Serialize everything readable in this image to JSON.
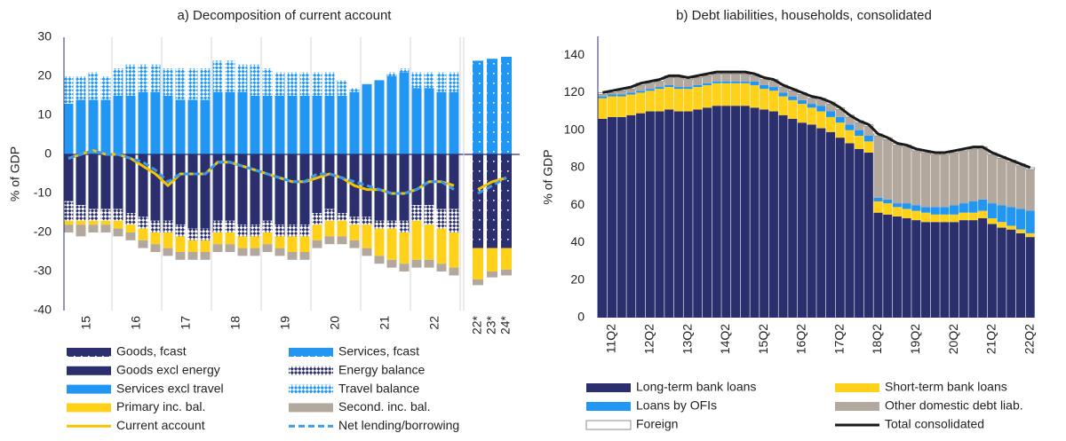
{
  "chart_data": [
    {
      "type": "bar",
      "stacked": true,
      "title": "a) Decomposition of current account",
      "ylabel": "% of GDP",
      "categories": [
        null,
        null,
        null,
        null,
        null,
        null,
        null,
        null,
        null,
        null,
        null,
        null,
        null,
        null,
        null,
        null,
        null,
        null,
        null,
        null,
        null,
        null,
        null,
        null,
        null,
        null,
        null,
        null,
        null,
        null,
        null,
        null,
        "22*",
        "23*",
        "24*"
      ],
      "year_labels": [
        "15",
        "16",
        "17",
        "18",
        "19",
        "20",
        "21",
        "22"
      ],
      "ylim": [
        -40,
        30
      ],
      "yticks": [
        -40,
        -30,
        -20,
        -10,
        0,
        10,
        20,
        30
      ],
      "grid": false,
      "series": [
        {
          "name": "Goods, fcast",
          "color": "#2b2f6e",
          "pattern": "dots",
          "values": [
            null,
            null,
            null,
            null,
            null,
            null,
            null,
            null,
            null,
            null,
            null,
            null,
            null,
            null,
            null,
            null,
            null,
            null,
            null,
            null,
            null,
            null,
            null,
            null,
            null,
            null,
            null,
            null,
            null,
            null,
            null,
            null,
            -24,
            -24,
            -24
          ]
        },
        {
          "name": "Services, fcast",
          "color": "#2196f3",
          "pattern": "dots",
          "values": [
            null,
            null,
            null,
            null,
            null,
            null,
            null,
            null,
            null,
            null,
            null,
            null,
            null,
            null,
            null,
            null,
            null,
            null,
            null,
            null,
            null,
            null,
            null,
            null,
            null,
            null,
            null,
            null,
            null,
            null,
            null,
            null,
            24,
            24.5,
            25
          ]
        },
        {
          "name": "Goods excl energy",
          "color": "#2b2f6e",
          "values": [
            -12,
            -13,
            -14,
            -14,
            -14,
            -15,
            -16,
            -17,
            -17,
            -18,
            -19,
            -19,
            -17,
            -17,
            -18,
            -18,
            -17,
            -18,
            -18,
            -18,
            -15,
            -14,
            -15,
            -16,
            -16,
            -17,
            -17,
            -17,
            -13,
            -13,
            -14,
            -14,
            null,
            null,
            null
          ]
        },
        {
          "name": "Energy balance",
          "color": "#2b2f6e",
          "pattern": "hatch",
          "values": [
            -5,
            -4,
            -3,
            -3,
            -3,
            -3,
            -3,
            -3,
            -3,
            -3,
            -3,
            -3,
            -3,
            -3,
            -3,
            -3,
            -3,
            -3,
            -3,
            -3,
            -3,
            -3,
            -2,
            -2,
            -2,
            -2,
            -2,
            -3,
            -4,
            -5,
            -5,
            -6,
            null,
            null,
            null
          ]
        },
        {
          "name": "Services excl travel",
          "color": "#2196f3",
          "values": [
            13,
            14,
            14,
            14,
            15,
            15,
            16,
            16,
            15,
            14,
            14,
            14,
            16,
            16,
            16,
            15,
            15,
            15,
            15,
            15,
            15,
            15,
            15,
            16,
            18,
            19,
            20,
            21,
            17,
            17,
            16,
            16,
            null,
            null,
            null
          ]
        },
        {
          "name": "Travel balance",
          "color": "#2196f3",
          "pattern": "hatch",
          "values": [
            7,
            6,
            7,
            6,
            7,
            8,
            7,
            7,
            7,
            8,
            8,
            8,
            8,
            8,
            7,
            8,
            7,
            6,
            6,
            6,
            6,
            6,
            4,
            1,
            0,
            0,
            1,
            1,
            4,
            4,
            5,
            5,
            null,
            null,
            null
          ]
        },
        {
          "name": "Primary inc. bal.",
          "color": "#ffd11a",
          "values": [
            -1,
            -1,
            -1,
            -1,
            -2,
            -2,
            -3,
            -3,
            -4,
            -4,
            -3,
            -3,
            -3,
            -3,
            -3,
            -3,
            -3,
            -3,
            -4,
            -4,
            -4,
            -4,
            -4,
            -4,
            -6,
            -7,
            -8,
            -8,
            -10,
            -9,
            -9,
            -9,
            -8,
            -6,
            -5.5
          ]
        },
        {
          "name": "Second. inc. bal.",
          "color": "#b2a89e",
          "values": [
            -2,
            -3,
            -2,
            -2,
            -2,
            -2,
            -2,
            -2,
            -2,
            -2,
            -2,
            -2,
            -2,
            -2,
            -2,
            -2,
            -2,
            -2,
            -2,
            -2,
            -2,
            -2,
            -2,
            -2,
            -2,
            -2,
            -2,
            -2,
            -2,
            -2,
            -2,
            -2,
            -1.5,
            -1.5,
            -1.5
          ]
        }
      ],
      "lines": [
        {
          "name": "Current account",
          "color": "#f5c400",
          "values": [
            -1,
            0,
            1,
            0,
            0,
            -1,
            -3,
            -5,
            -8,
            -5,
            -5,
            -5,
            -2,
            -2,
            -3,
            -4,
            -5,
            -6,
            -7,
            -7,
            -6,
            -5,
            -6,
            -8,
            -9,
            -9,
            -10,
            -10,
            -9,
            -7,
            -7,
            -8,
            -9,
            -7,
            -6
          ]
        },
        {
          "name": "Net lending/borrowing",
          "color": "#3a9ae8",
          "dash": true,
          "values": [
            -1,
            0,
            1,
            0,
            0,
            -1,
            -2,
            -4,
            -7,
            -5,
            -5,
            -5,
            -2,
            -2,
            -3,
            -4,
            -5,
            -6,
            -7,
            -7,
            -5,
            -5,
            -6,
            -7,
            -8,
            -9,
            -10,
            -10,
            -9,
            -7,
            -7,
            -9,
            -10,
            -8,
            -6
          ]
        }
      ]
    },
    {
      "type": "bar",
      "stacked": true,
      "title": "b) Debt liabilities, households, consolidated",
      "ylabel": "% of GDP",
      "categories": [
        null,
        "11Q2",
        null,
        null,
        null,
        "12Q2",
        null,
        null,
        null,
        "13Q2",
        null,
        null,
        null,
        "14Q2",
        null,
        null,
        null,
        "15Q2",
        null,
        null,
        null,
        "16Q2",
        null,
        null,
        null,
        "17Q2",
        null,
        null,
        null,
        "18Q2",
        null,
        null,
        null,
        "19Q2",
        null,
        null,
        null,
        "20Q2",
        null,
        null,
        null,
        "21Q2",
        null,
        null,
        null,
        "22Q2"
      ],
      "ylim": [
        0,
        150
      ],
      "yticks": [
        0,
        20,
        40,
        60,
        80,
        100,
        120,
        140
      ],
      "grid": false,
      "series": [
        {
          "name": "Long-term bank loans",
          "color": "#2b2f6e",
          "values": [
            106,
            107,
            107,
            108,
            109,
            110,
            110,
            111,
            110,
            110,
            111,
            112,
            113,
            113,
            113,
            113,
            112,
            111,
            110,
            108,
            106,
            104,
            103,
            101,
            99,
            96,
            93,
            90,
            88,
            56,
            55,
            54,
            53,
            52,
            51,
            51,
            51,
            51,
            52,
            52,
            53,
            50,
            48,
            47,
            45,
            43
          ]
        },
        {
          "name": "Short-term bank loans",
          "color": "#ffd11a",
          "values": [
            11,
            11,
            11,
            11,
            11,
            11,
            12,
            12,
            12,
            12,
            12,
            12,
            12,
            12,
            12,
            12,
            12,
            11,
            11,
            10,
            10,
            10,
            9,
            9,
            8,
            8,
            7,
            7,
            6,
            6,
            6,
            5,
            5,
            5,
            5,
            4,
            4,
            4,
            4,
            4,
            4,
            3,
            3,
            2,
            2,
            2
          ]
        },
        {
          "name": "Loans by OFIs",
          "color": "#2196f3",
          "values": [
            1,
            1,
            1,
            1,
            1,
            1,
            1,
            1,
            1,
            1,
            1,
            1,
            1,
            1,
            1,
            1,
            2,
            2,
            2,
            2,
            2,
            2,
            2,
            3,
            3,
            3,
            3,
            3,
            3,
            2,
            2,
            2,
            3,
            3,
            3,
            4,
            4,
            5,
            5,
            6,
            6,
            8,
            9,
            10,
            11,
            12
          ]
        },
        {
          "name": "Other domestic debt liab.",
          "color": "#b2a89e",
          "values": [
            1,
            1,
            2,
            2,
            3,
            3,
            3,
            4,
            5,
            4,
            4,
            4,
            4,
            4,
            4,
            4,
            3,
            3,
            3,
            3,
            3,
            3,
            3,
            3,
            4,
            4,
            4,
            4,
            5,
            33,
            32,
            31,
            30,
            29,
            29,
            28,
            28,
            28,
            28,
            28,
            27,
            26,
            25,
            24,
            23,
            22
          ]
        },
        {
          "name": "Foreign",
          "color": "#ffffff",
          "edgecolor": "#8c8c8c",
          "values": [
            1,
            1,
            1,
            1,
            1,
            1,
            1,
            1,
            1,
            1,
            1,
            1,
            1,
            1,
            1,
            1,
            1,
            1,
            1,
            1,
            1,
            1,
            1,
            1,
            1,
            1,
            1,
            1,
            1,
            1,
            1,
            1,
            1,
            1,
            1,
            1,
            1,
            1,
            1,
            1,
            1,
            1,
            1,
            1,
            1,
            1
          ]
        }
      ],
      "lines": [
        {
          "name": "Total consolidated",
          "color": "#1a1a1a",
          "values": [
            120,
            121,
            122,
            123,
            125,
            126,
            127,
            129,
            129,
            128,
            129,
            130,
            131,
            131,
            131,
            131,
            130,
            128,
            127,
            124,
            122,
            120,
            118,
            117,
            115,
            112,
            108,
            105,
            103,
            98,
            96,
            93,
            92,
            90,
            89,
            88,
            88,
            89,
            90,
            91,
            91,
            88,
            86,
            84,
            82,
            80
          ]
        }
      ]
    }
  ]
}
